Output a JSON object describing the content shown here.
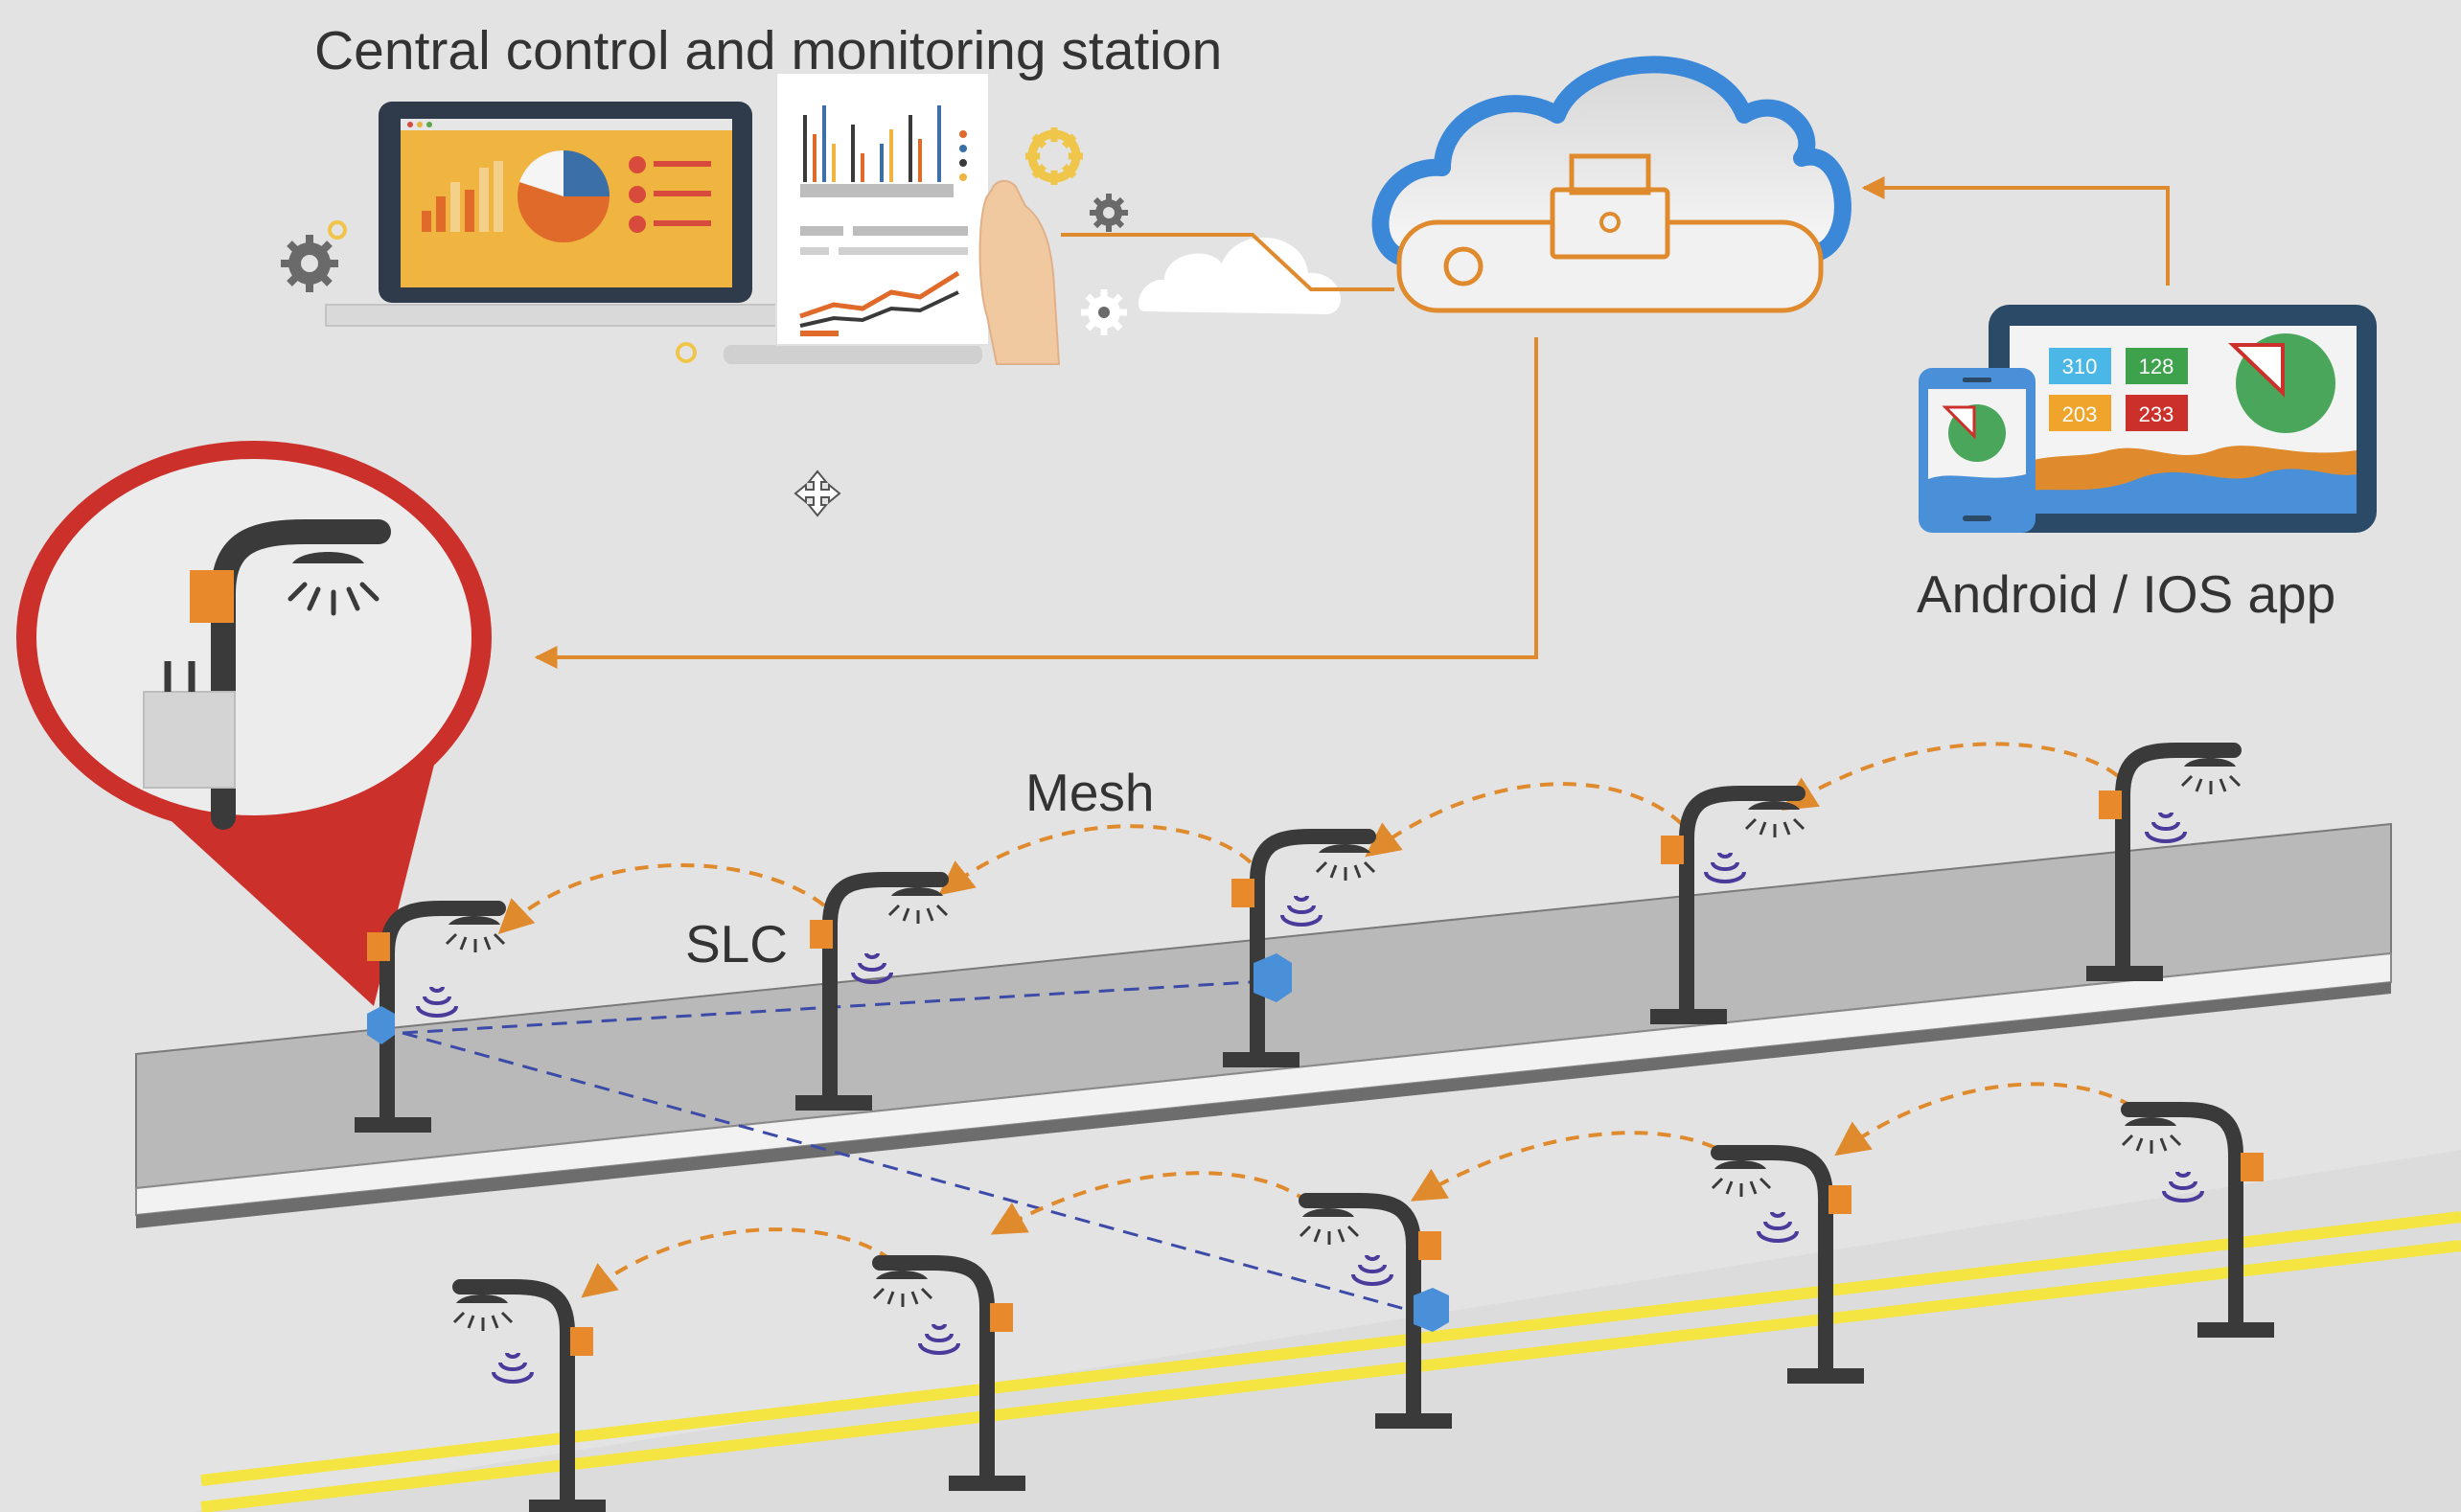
{
  "labels": {
    "central_station": "Central control and monitoring station",
    "app": "Android / IOS app",
    "mesh": "Mesh",
    "slc": "SLC"
  },
  "dashboard_tiles": [
    "310",
    "128",
    "203",
    "233"
  ],
  "colors": {
    "background": "#e3e3e3",
    "connector_orange": "#e08a2e",
    "node_orange": "#e8892b",
    "gateway_blue": "#4a90d9",
    "pole": "#3a3a3a",
    "callout_red": "#cc302b",
    "road_line_yellow": "#f4e542",
    "wave_purple": "#4a3a9a",
    "mesh_link_dashed_blue": "#3c4aa8",
    "cloud_outline_blue": "#3b87d8"
  },
  "icons": {
    "laptop": "laptop-icon",
    "report": "report-document-icon",
    "cloud": "cloud-icon",
    "gateway_device": "gateway-icon",
    "tablet": "tablet-icon",
    "phone": "smartphone-icon",
    "street_light": "street-light-icon",
    "gear": "gear-icon",
    "move_cursor": "move-cursor-icon"
  }
}
